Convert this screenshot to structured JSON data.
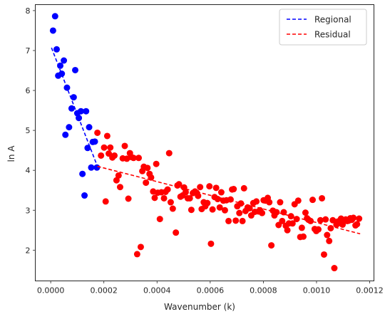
{
  "chart_data": {
    "type": "scatter",
    "title": "",
    "xlabel": "Wavenumber (k)",
    "ylabel": "ln A",
    "xlim": [
      -5.8e-05,
      0.001216
    ],
    "ylim": [
      1.23,
      8.15
    ],
    "x_ticks": [
      0,
      0.0002,
      0.0004,
      0.0006,
      0.0008,
      0.001,
      0.0012
    ],
    "x_tick_labels": [
      "0.0000",
      "0.0002",
      "0.0004",
      "0.0006",
      "0.0008",
      "0.0010",
      "0.0012"
    ],
    "y_ticks": [
      2,
      3,
      4,
      5,
      6,
      7,
      8
    ],
    "y_tick_labels": [
      "2",
      "3",
      "4",
      "5",
      "6",
      "7",
      "8"
    ],
    "grid": false,
    "legend": {
      "placement": "top-right",
      "entries": [
        "Regional",
        "Residual"
      ]
    },
    "colors": {
      "regional": "#0000ff",
      "residual": "#ff0000",
      "axis": "#262626"
    },
    "series": [
      {
        "name": "Regional",
        "kind": "points",
        "color": "#0000ff",
        "points": [
          [
            8.7e-06,
            7.5
          ],
          [
            1.65e-05,
            7.86
          ],
          [
            2.24e-05,
            7.03
          ],
          [
            2.82e-05,
            6.37
          ],
          [
            3.59e-05,
            6.62
          ],
          [
            4.18e-05,
            6.42
          ],
          [
            4.95e-05,
            6.75
          ],
          [
            5.53e-05,
            4.89
          ],
          [
            6.12e-05,
            6.07
          ],
          [
            6.9e-05,
            5.08
          ],
          [
            7.86e-05,
            5.55
          ],
          [
            8.64e-05,
            5.83
          ],
          [
            9.22e-05,
            6.51
          ],
          [
            0.0001,
            5.43
          ],
          [
            0.0001058,
            5.31
          ],
          [
            0.0001136,
            5.48
          ],
          [
            0.0001194,
            3.91
          ],
          [
            0.0001272,
            3.37
          ],
          [
            0.000133,
            5.48
          ],
          [
            0.0001388,
            4.56
          ],
          [
            0.0001446,
            5.08
          ],
          [
            0.0001524,
            4.07
          ],
          [
            0.0001582,
            4.71
          ],
          [
            0.000166,
            4.72
          ],
          [
            0.0001738,
            4.07
          ]
        ]
      },
      {
        "name": "Residual",
        "kind": "points",
        "color": "#ff0000",
        "points": [
          [
            0.0001757,
            4.94
          ],
          [
            0.0001893,
            4.37
          ],
          [
            0.0002009,
            4.57
          ],
          [
            0.0002067,
            3.22
          ],
          [
            0.0002126,
            4.86
          ],
          [
            0.0002184,
            4.42
          ],
          [
            0.0002242,
            4.57
          ],
          [
            0.000232,
            4.32
          ],
          [
            0.0002398,
            4.37
          ],
          [
            0.0002475,
            3.75
          ],
          [
            0.0002553,
            3.87
          ],
          [
            0.0002611,
            3.58
          ],
          [
            0.0002708,
            4.3
          ],
          [
            0.0002786,
            4.61
          ],
          [
            0.0002863,
            4.29
          ],
          [
            0.0002922,
            3.29
          ],
          [
            0.000298,
            4.43
          ],
          [
            0.0003038,
            4.33
          ],
          [
            0.0003116,
            4.31
          ],
          [
            0.0003252,
            1.9
          ],
          [
            0.000331,
            4.31
          ],
          [
            0.0003388,
            2.08
          ],
          [
            0.0003446,
            3.98
          ],
          [
            0.0003504,
            4.09
          ],
          [
            0.0003582,
            3.69
          ],
          [
            0.000364,
            4.06
          ],
          [
            0.0003718,
            3.91
          ],
          [
            0.0003776,
            3.82
          ],
          [
            0.0003854,
            3.47
          ],
          [
            0.0003912,
            3.31
          ],
          [
            0.000397,
            4.16
          ],
          [
            0.0004029,
            3.44
          ],
          [
            0.0004107,
            2.78
          ],
          [
            0.0004165,
            3.45
          ],
          [
            0.0004262,
            3.3
          ],
          [
            0.000432,
            3.46
          ],
          [
            0.0004398,
            3.52
          ],
          [
            0.0004456,
            4.43
          ],
          [
            0.0004514,
            3.2
          ],
          [
            0.0004592,
            3.04
          ],
          [
            0.0004708,
            2.44
          ],
          [
            0.0004767,
            3.62
          ],
          [
            0.0004825,
            3.65
          ],
          [
            0.0004883,
            3.34
          ],
          [
            0.0004961,
            3.37
          ],
          [
            0.0005019,
            3.57
          ],
          [
            0.0005077,
            3.45
          ],
          [
            0.0005155,
            3.3
          ],
          [
            0.0005233,
            3.3
          ],
          [
            0.0005291,
            3.01
          ],
          [
            0.0005349,
            3.43
          ],
          [
            0.0005427,
            3.47
          ],
          [
            0.0005485,
            3.44
          ],
          [
            0.0005544,
            3.36
          ],
          [
            0.0005621,
            3.58
          ],
          [
            0.000568,
            3.03
          ],
          [
            0.0005757,
            3.2
          ],
          [
            0.0005815,
            3.1
          ],
          [
            0.0005893,
            3.18
          ],
          [
            0.0005971,
            3.6
          ],
          [
            0.0006029,
            2.16
          ],
          [
            0.0006087,
            3.02
          ],
          [
            0.0006165,
            3.33
          ],
          [
            0.0006223,
            3.56
          ],
          [
            0.0006282,
            3.28
          ],
          [
            0.0006359,
            3.07
          ],
          [
            0.0006418,
            3.45
          ],
          [
            0.0006495,
            3.24
          ],
          [
            0.0006553,
            3.0
          ],
          [
            0.0006612,
            3.25
          ],
          [
            0.000669,
            2.73
          ],
          [
            0.0006767,
            3.27
          ],
          [
            0.0006825,
            3.52
          ],
          [
            0.0006883,
            3.53
          ],
          [
            0.0006961,
            2.74
          ],
          [
            0.0007019,
            3.1
          ],
          [
            0.0007097,
            2.93
          ],
          [
            0.0007155,
            3.17
          ],
          [
            0.0007214,
            2.73
          ],
          [
            0.0007272,
            3.55
          ],
          [
            0.000733,
            2.98
          ],
          [
            0.0007408,
            3.07
          ],
          [
            0.0007485,
            3.05
          ],
          [
            0.0007544,
            2.87
          ],
          [
            0.0007621,
            3.18
          ],
          [
            0.000768,
            2.96
          ],
          [
            0.0007738,
            3.22
          ],
          [
            0.0007815,
            2.97
          ],
          [
            0.0007874,
            3.0
          ],
          [
            0.0007951,
            2.93
          ],
          [
            0.000801,
            3.25
          ],
          [
            0.0008087,
            3.24
          ],
          [
            0.0008165,
            3.31
          ],
          [
            0.0008223,
            3.2
          ],
          [
            0.0008301,
            2.12
          ],
          [
            0.0008359,
            2.99
          ],
          [
            0.0008417,
            2.87
          ],
          [
            0.0008495,
            2.95
          ],
          [
            0.0008573,
            2.63
          ],
          [
            0.0008631,
            3.2
          ],
          [
            0.0008709,
            2.73
          ],
          [
            0.0008767,
            2.95
          ],
          [
            0.0008845,
            2.61
          ],
          [
            0.0008903,
            2.5
          ],
          [
            0.0008961,
            2.67
          ],
          [
            0.0009039,
            2.85
          ],
          [
            0.0009097,
            2.67
          ],
          [
            0.0009175,
            3.15
          ],
          [
            0.0009252,
            2.78
          ],
          [
            0.0009311,
            3.24
          ],
          [
            0.0009388,
            2.33
          ],
          [
            0.0009447,
            2.56
          ],
          [
            0.0009505,
            2.34
          ],
          [
            0.0009583,
            2.94
          ],
          [
            0.0009641,
            2.8
          ],
          [
            0.0009699,
            2.76
          ],
          [
            0.0009777,
            2.73
          ],
          [
            0.0009854,
            3.26
          ],
          [
            0.0009932,
            2.53
          ],
          [
            0.000999,
            2.48
          ],
          [
            0.0010068,
            2.52
          ],
          [
            0.0010146,
            2.75
          ],
          [
            0.0010204,
            3.3
          ],
          [
            0.0010282,
            1.89
          ],
          [
            0.001034,
            2.77
          ],
          [
            0.0010398,
            2.38
          ],
          [
            0.0010476,
            2.23
          ],
          [
            0.0010534,
            2.55
          ],
          [
            0.0010612,
            2.75
          ],
          [
            0.001067,
            1.55
          ],
          [
            0.0010748,
            2.64
          ],
          [
            0.0010806,
            2.72
          ],
          [
            0.0010864,
            2.68
          ],
          [
            0.0010922,
            2.79
          ],
          [
            0.0010981,
            2.64
          ],
          [
            0.0011039,
            2.74
          ],
          [
            0.0011097,
            2.77
          ],
          [
            0.0011155,
            2.73
          ],
          [
            0.0011213,
            2.74
          ],
          [
            0.0011272,
            2.8
          ],
          [
            0.001133,
            2.76
          ],
          [
            0.0011388,
            2.81
          ],
          [
            0.0011466,
            2.62
          ],
          [
            0.0011524,
            2.65
          ],
          [
            0.0011602,
            2.79
          ]
        ]
      },
      {
        "name": "Regional",
        "kind": "fit-line",
        "style": "dashed",
        "color": "#0000ff",
        "x": [
          2.9e-06,
          0.0001757
        ],
        "y": [
          7.07,
          4.1
        ]
      },
      {
        "name": "Residual",
        "kind": "fit-line",
        "style": "dashed",
        "color": "#ff0000",
        "x": [
          0.0001757,
          0.0011641
        ],
        "y": [
          4.1,
          2.41
        ]
      }
    ]
  }
}
